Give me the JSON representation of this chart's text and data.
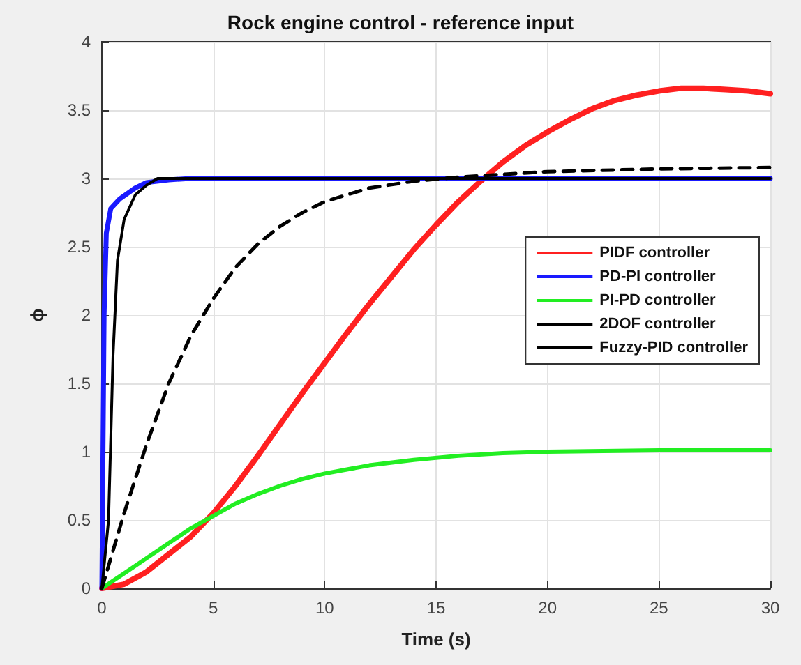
{
  "chart_data": {
    "type": "line",
    "title": "Rock engine control - reference input",
    "xlabel": "Time (s)",
    "ylabel": "ϕ",
    "xlim": [
      0,
      30
    ],
    "xticks": [
      0,
      5,
      10,
      15,
      20,
      25,
      30
    ],
    "ylim": [
      0,
      4
    ],
    "yticks": [
      0,
      0.5,
      1,
      1.5,
      2,
      2.5,
      3,
      3.5,
      4
    ],
    "grid": true,
    "legend": "right",
    "marker": "none",
    "series": [
      {
        "name": "PIDF controller",
        "color": "#ff2020",
        "x": [
          0,
          1,
          2,
          3,
          4,
          5,
          6,
          7,
          8,
          9,
          10,
          11,
          12,
          13,
          14,
          15,
          16,
          17,
          18,
          19,
          20,
          21,
          22,
          23,
          24,
          25,
          26,
          27,
          28,
          29,
          30
        ],
        "values": [
          0,
          0.03,
          0.12,
          0.25,
          0.38,
          0.55,
          0.75,
          0.97,
          1.2,
          1.43,
          1.65,
          1.87,
          2.08,
          2.28,
          2.48,
          2.66,
          2.83,
          2.98,
          3.12,
          3.24,
          3.34,
          3.43,
          3.51,
          3.57,
          3.61,
          3.64,
          3.66,
          3.66,
          3.65,
          3.64,
          3.62
        ]
      },
      {
        "name": "PD-PI controller",
        "color": "#1a1aff",
        "x": [
          0,
          0.1,
          0.2,
          0.4,
          0.8,
          1.5,
          2,
          3,
          4,
          30
        ],
        "values": [
          0,
          2,
          2.6,
          2.78,
          2.85,
          2.93,
          2.97,
          2.99,
          3,
          3
        ]
      },
      {
        "name": "PI-PD controller",
        "color": "#22ee22",
        "x": [
          0,
          1,
          2,
          3,
          4,
          5,
          6,
          7,
          8,
          9,
          10,
          12,
          14,
          16,
          18,
          20,
          25,
          30
        ],
        "values": [
          0,
          0.11,
          0.22,
          0.33,
          0.44,
          0.53,
          0.62,
          0.69,
          0.75,
          0.8,
          0.84,
          0.9,
          0.94,
          0.97,
          0.99,
          1,
          1.01,
          1.01
        ]
      },
      {
        "name": "2DOF controller",
        "color": "#000000",
        "line_style": "dashed",
        "x": [
          0,
          1,
          2,
          3,
          4,
          5,
          6,
          7,
          8,
          9,
          10,
          12,
          14,
          16,
          18,
          20,
          25,
          30
        ],
        "values": [
          0,
          0.55,
          1.05,
          1.5,
          1.85,
          2.12,
          2.35,
          2.52,
          2.65,
          2.75,
          2.83,
          2.93,
          2.98,
          3.01,
          3.03,
          3.05,
          3.07,
          3.08
        ]
      },
      {
        "name": "Fuzzy-PID controller",
        "color": "#000000",
        "x": [
          0,
          0.3,
          0.5,
          0.7,
          1,
          1.5,
          2,
          2.5,
          30
        ],
        "values": [
          0,
          0.5,
          1.7,
          2.4,
          2.7,
          2.88,
          2.95,
          3,
          3
        ]
      }
    ]
  }
}
